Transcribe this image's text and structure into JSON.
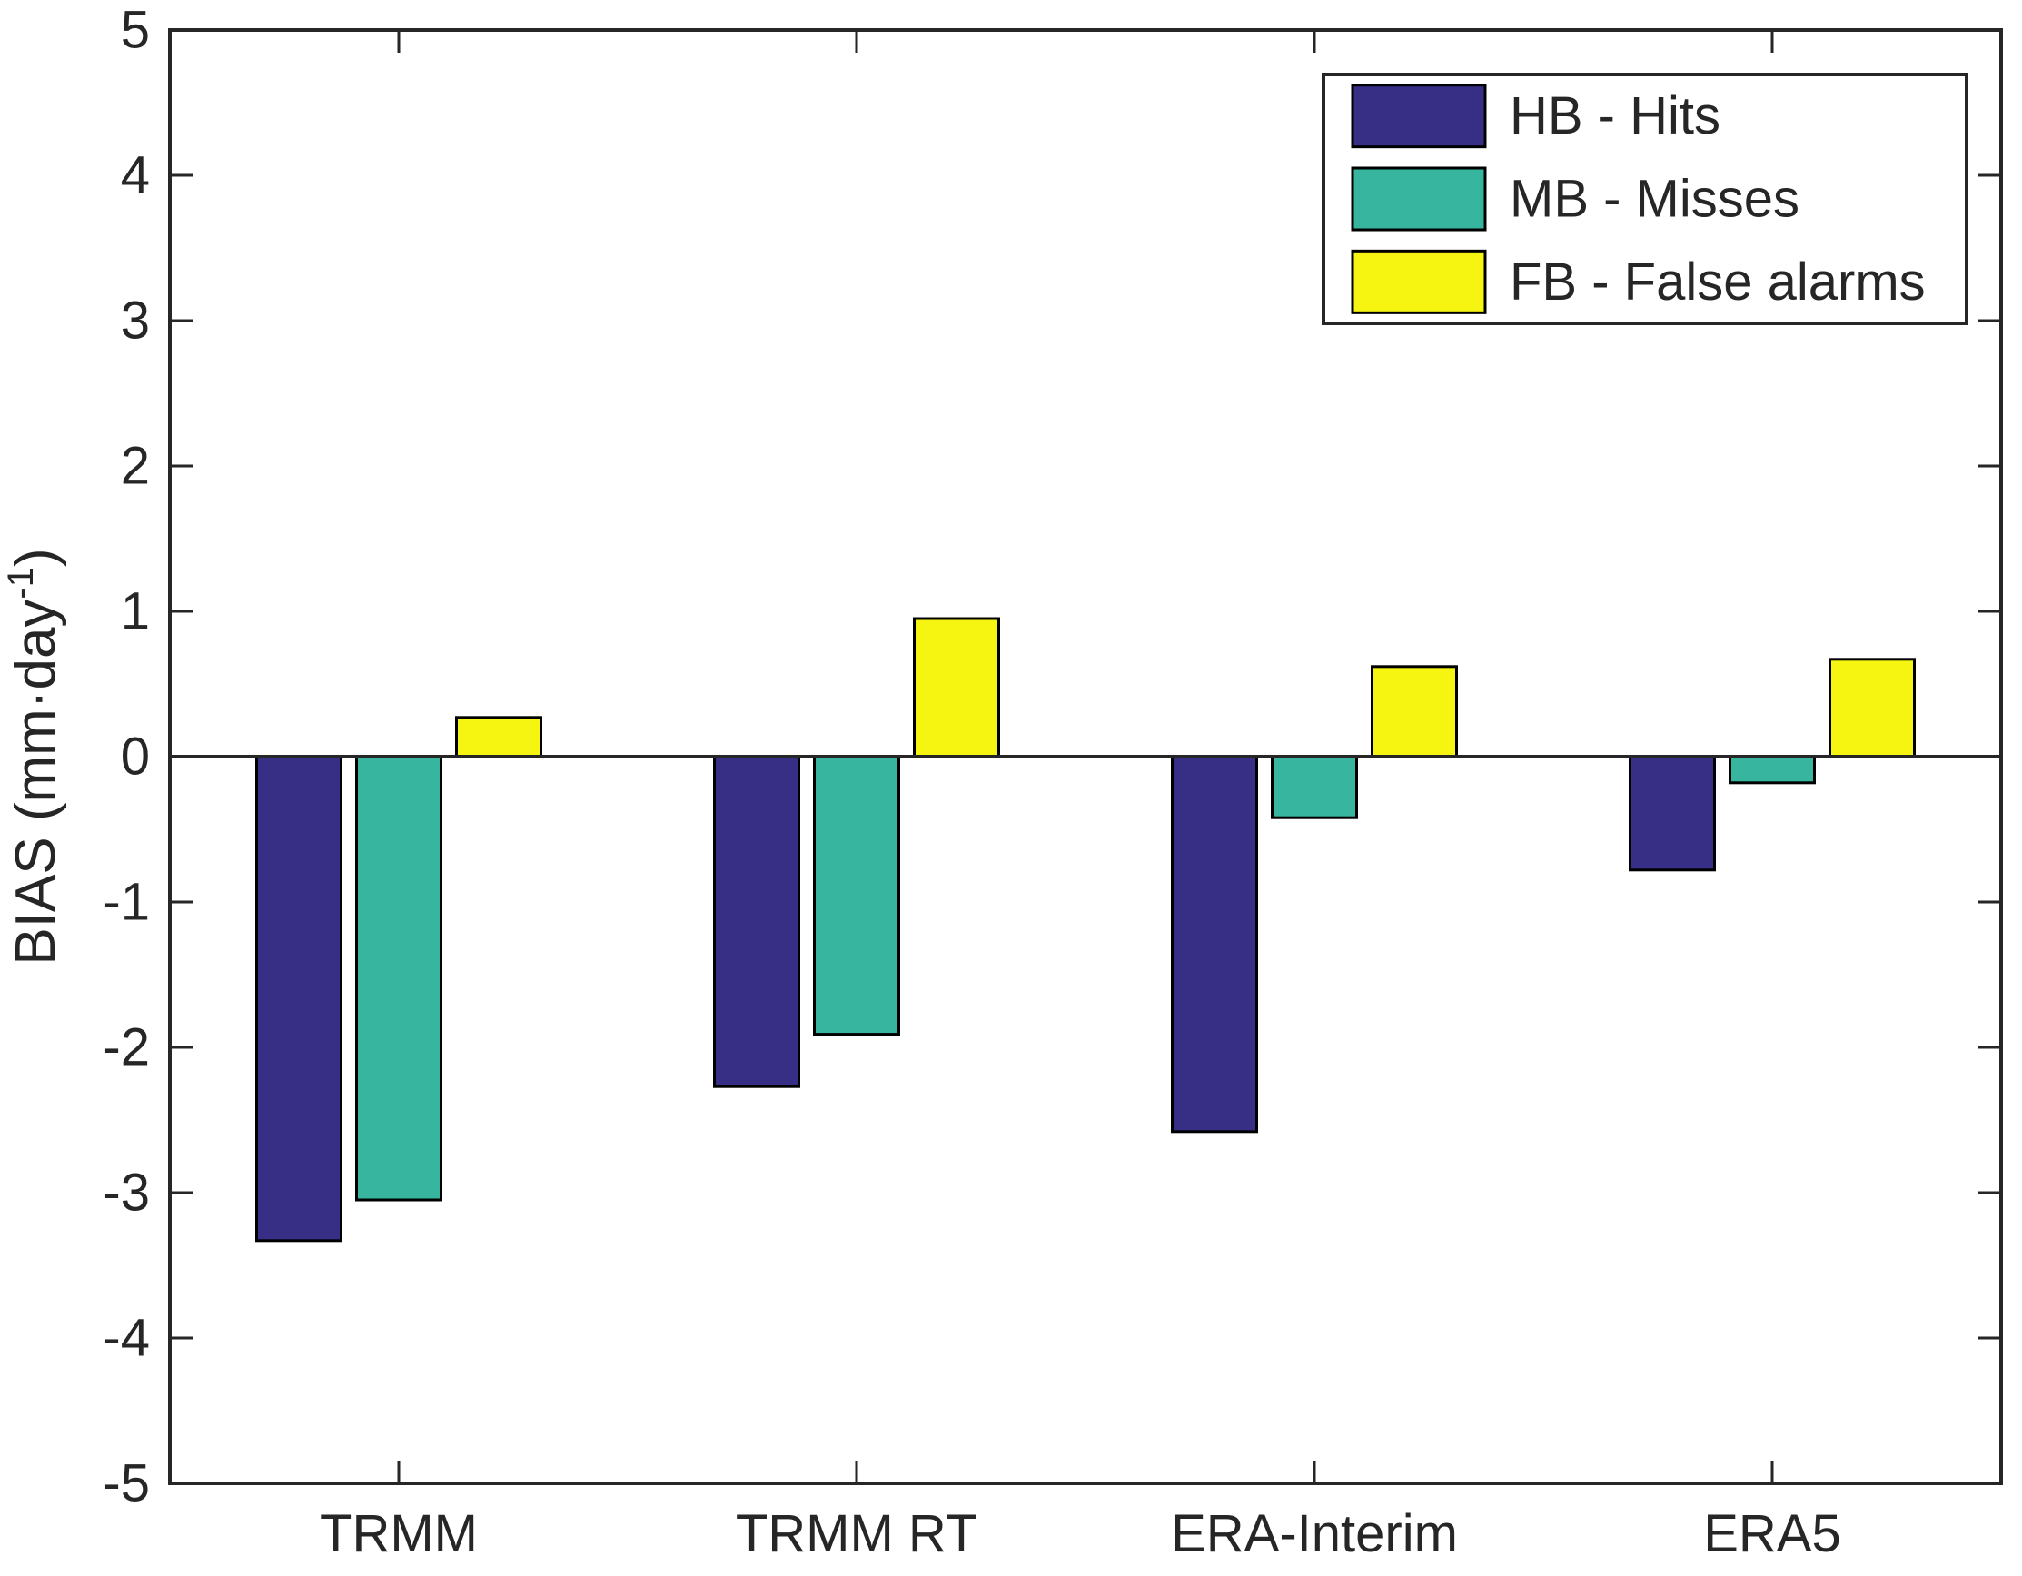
{
  "chart_data": {
    "type": "bar",
    "title": "",
    "xlabel": "",
    "ylabel": "BIAS (mm·day⁻¹)",
    "ylabel_parts": {
      "main": "BIAS (mm·day",
      "sup": "-1",
      "close": ")"
    },
    "categories": [
      "TRMM",
      "TRMM RT",
      "ERA-Interim",
      "ERA5"
    ],
    "series": [
      {
        "name": "HB - Hits",
        "color": "#372E85",
        "values": [
          -3.33,
          -2.27,
          -2.58,
          -0.78
        ]
      },
      {
        "name": "MB - Misses",
        "color": "#38B59E",
        "values": [
          -3.05,
          -1.91,
          -0.42,
          -0.18
        ]
      },
      {
        "name": "FB - False alarms",
        "color": "#F5F511",
        "values": [
          0.27,
          0.95,
          0.62,
          0.67
        ]
      }
    ],
    "ylim": [
      -5,
      5
    ],
    "yticks": [
      -5,
      -4,
      -3,
      -2,
      -1,
      0,
      1,
      2,
      3,
      4,
      5
    ],
    "grid": false,
    "zero_line": true,
    "legend_position": "top-right",
    "box_on": true,
    "axis_color": "#262626",
    "bar_edge_color": "#000000",
    "background_color": "#ffffff"
  }
}
